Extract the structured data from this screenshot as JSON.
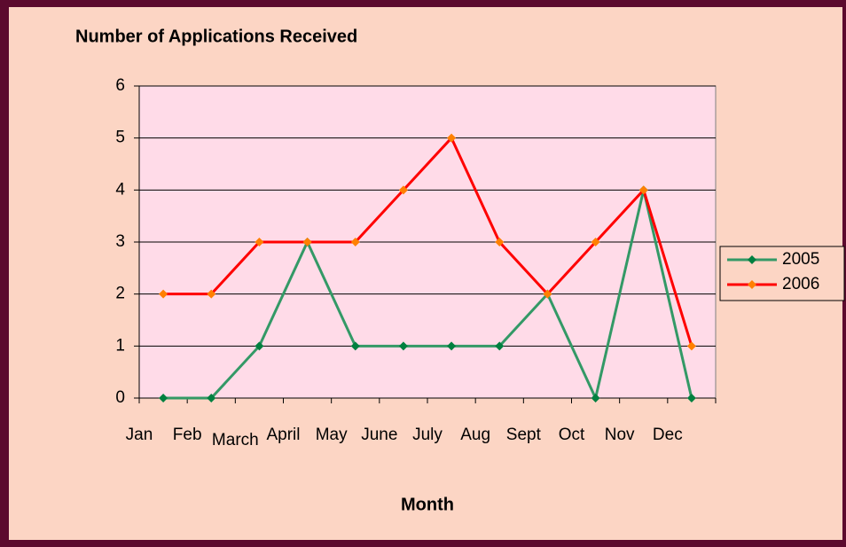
{
  "chart_data": {
    "type": "line",
    "title": "Number of Applications Received",
    "x_label": "Month",
    "categories": [
      "Jan",
      "Feb",
      "March",
      "April",
      "May",
      "June",
      "July",
      "Aug",
      "Sept",
      "Oct",
      "Nov",
      "Dec"
    ],
    "series": [
      {
        "name": "2005",
        "color": "#339966",
        "marker_color": "#008040",
        "values": [
          0,
          0,
          1,
          3,
          1,
          1,
          1,
          1,
          2,
          0,
          4,
          0
        ]
      },
      {
        "name": "2006",
        "color": "#ff0000",
        "marker_color": "#ff8000",
        "values": [
          2,
          2,
          3,
          3,
          3,
          4,
          5,
          3,
          2,
          3,
          4,
          1
        ]
      }
    ],
    "ylim": [
      0,
      6
    ],
    "yticks": [
      0,
      1,
      2,
      3,
      4,
      5,
      6
    ],
    "grid": true,
    "legend": "right"
  }
}
